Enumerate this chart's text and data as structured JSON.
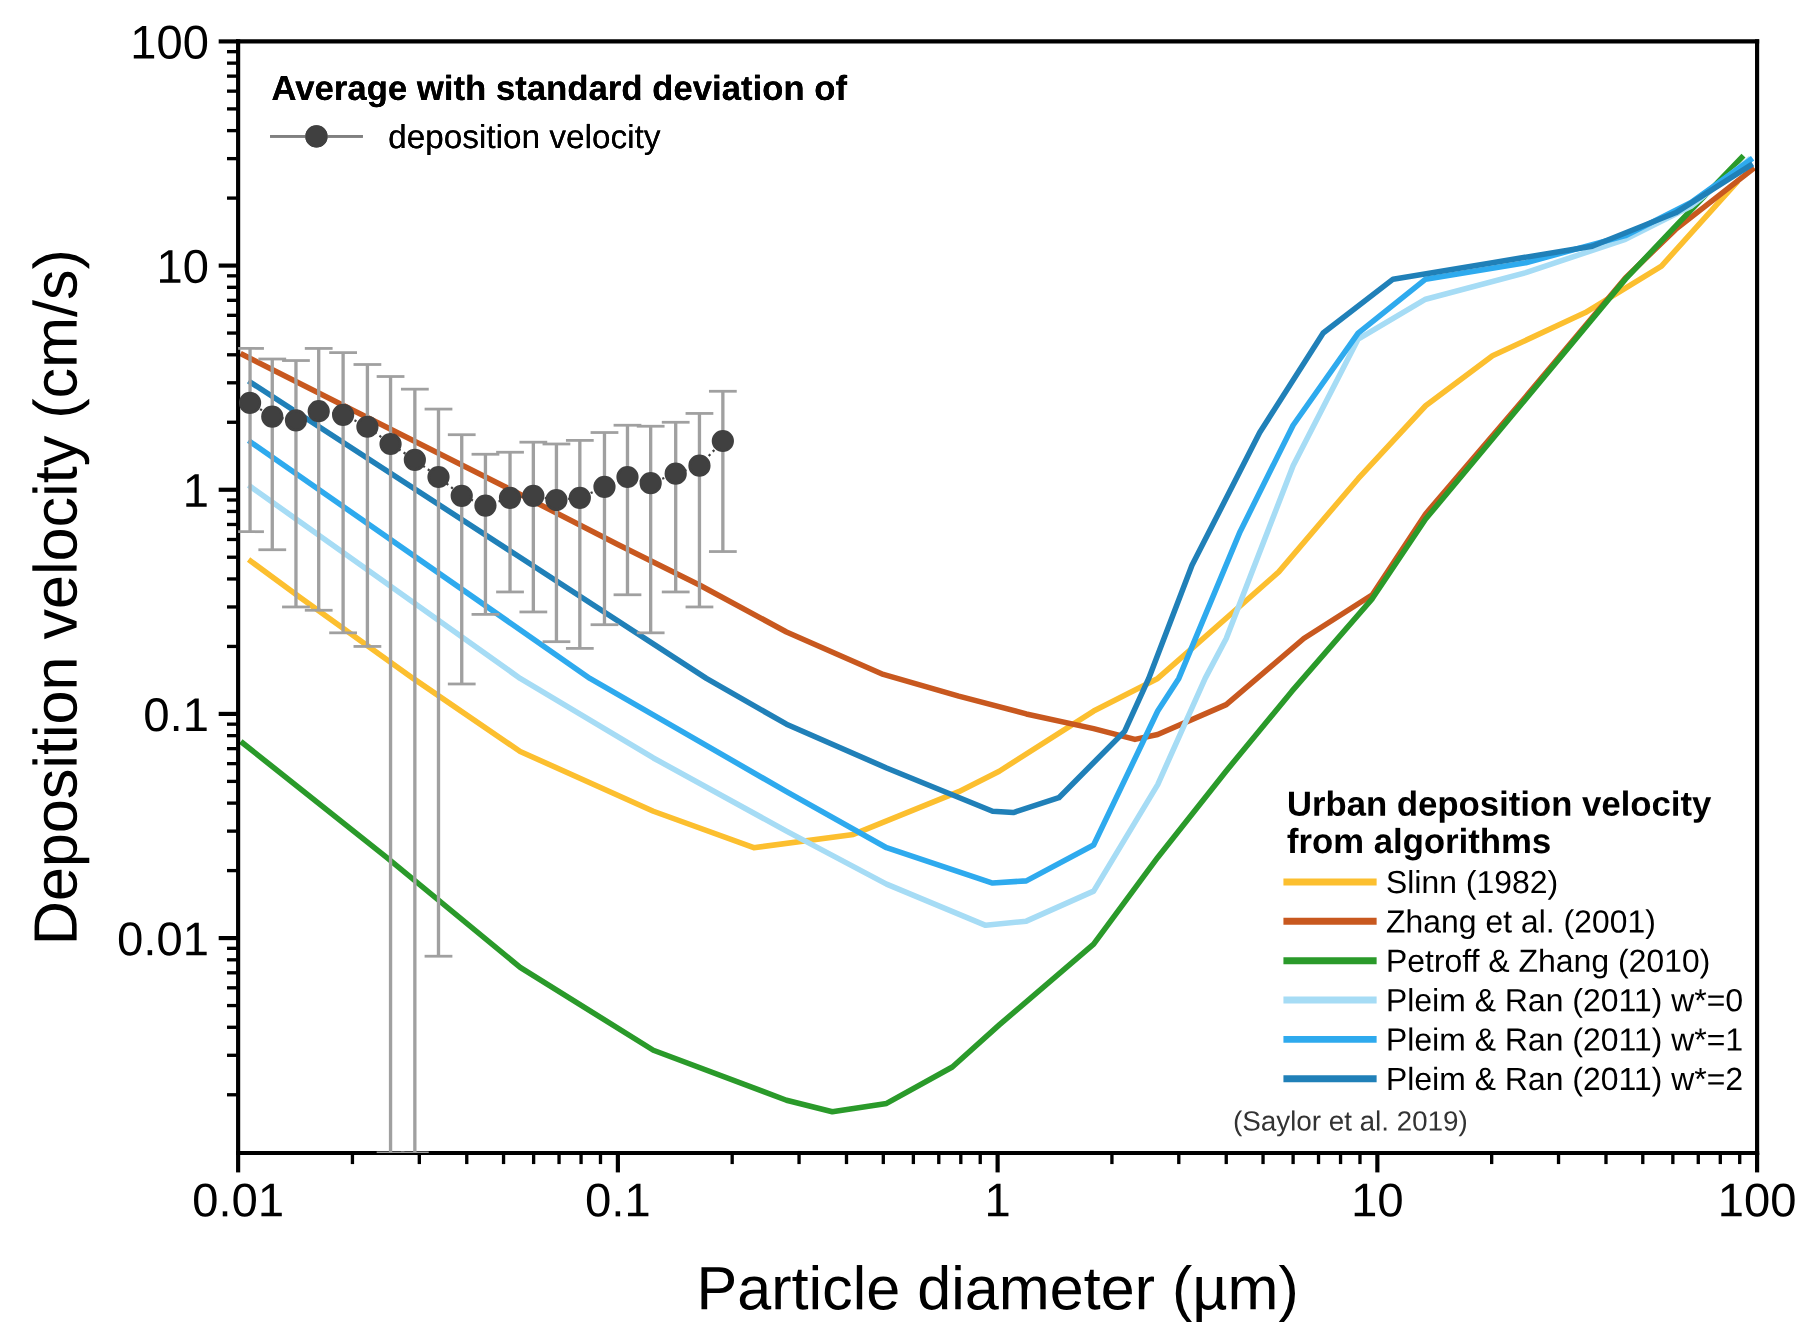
{
  "chart_data": {
    "type": "line",
    "xlabel": "Particle diameter (µm)",
    "ylabel": "Deposition velocity (cm/s)",
    "legend_title": "Urban deposition velocity\nfrom algorithms",
    "annotations": [
      "Average with standard deviation of",
      "(Saylor et al. 2019)"
    ],
    "log": "xy",
    "legend": "bottom right",
    "grid": false,
    "xlim": [
      0.01,
      100
    ],
    "xticks": [
      0.01,
      0.1,
      1,
      10,
      100
    ],
    "ylim": [
      0.0011,
      100
    ],
    "yticks": [
      0.01,
      0.1,
      1,
      10,
      100
    ],
    "series": [
      {
        "name": "deposition velocity",
        "type": "line",
        "color": "#404040",
        "marker": "circle",
        "line_style": "dotted",
        "x": [
          0.01075,
          0.0123,
          0.0142,
          0.0163,
          0.0189,
          0.0219,
          0.0252,
          0.0292,
          0.0337,
          0.0388,
          0.0448,
          0.052,
          0.0599,
          0.0689,
          0.0794,
          0.0922,
          0.106,
          0.122,
          0.142,
          0.164,
          0.189
        ],
        "values": [
          2.44,
          2.12,
          2.04,
          2.24,
          2.16,
          1.91,
          1.6,
          1.36,
          1.14,
          0.94,
          0.85,
          0.92,
          0.94,
          0.9,
          0.92,
          1.03,
          1.14,
          1.07,
          1.18,
          1.28,
          1.65
        ],
        "errors": [
          [
            0.65,
            4.27
          ],
          [
            0.54,
            3.83
          ],
          [
            0.3,
            3.77
          ],
          [
            0.29,
            4.27
          ],
          [
            0.23,
            4.09
          ],
          [
            0.2,
            3.62
          ],
          [
            0.0011,
            3.2
          ],
          [
            0.0011,
            2.81
          ],
          [
            0.0083,
            2.29
          ],
          [
            0.136,
            1.76
          ],
          [
            0.278,
            1.44
          ],
          [
            0.35,
            1.47
          ],
          [
            0.285,
            1.63
          ],
          [
            0.21,
            1.6
          ],
          [
            0.196,
            1.66
          ],
          [
            0.25,
            1.8
          ],
          [
            0.34,
            1.94
          ],
          [
            0.23,
            1.92
          ],
          [
            0.35,
            2.0
          ],
          [
            0.3,
            2.19
          ],
          [
            0.53,
            2.75
          ]
        ]
      },
      {
        "name": "Slinn (1982)",
        "color": "#fcbf2f",
        "x": [
          0.0108,
          0.0146,
          0.0289,
          0.0553,
          0.124,
          0.228,
          0.417,
          0.79,
          1.01,
          1.79,
          2.64,
          3.25,
          5.5,
          8.9,
          13.4,
          20.1,
          35.3,
          56,
          88
        ],
        "values": [
          0.48,
          0.33,
          0.144,
          0.068,
          0.0368,
          0.0253,
          0.029,
          0.045,
          0.0555,
          0.103,
          0.144,
          0.196,
          0.43,
          1.12,
          2.37,
          3.96,
          6.17,
          9.95,
          23.3
        ]
      },
      {
        "name": "Zhang et al. (2001)",
        "color": "#c8581f",
        "x": [
          0.0103,
          0.02,
          0.05,
          0.1,
          0.164,
          0.278,
          0.5,
          0.79,
          1.19,
          1.79,
          2.3,
          2.64,
          4.0,
          6.4,
          9.7,
          13.4,
          24.6,
          45,
          61,
          97
        ],
        "values": [
          4.0,
          2.27,
          1.04,
          0.57,
          0.376,
          0.232,
          0.15,
          0.12,
          0.1,
          0.086,
          0.077,
          0.081,
          0.11,
          0.217,
          0.34,
          0.78,
          2.6,
          8.8,
          14.5,
          26.8
        ]
      },
      {
        "name": "Petroff & Zhang (2010)",
        "color": "#2a9a2a",
        "x": [
          0.0103,
          0.0246,
          0.0553,
          0.124,
          0.278,
          0.367,
          0.51,
          0.76,
          1.01,
          1.79,
          2.64,
          3.99,
          5.95,
          9.7,
          13.4,
          24.6,
          45,
          61,
          91
        ],
        "values": [
          0.074,
          0.0229,
          0.0074,
          0.00316,
          0.00189,
          0.00168,
          0.00183,
          0.00266,
          0.0041,
          0.0094,
          0.0229,
          0.0554,
          0.126,
          0.327,
          0.74,
          2.54,
          8.7,
          15,
          30.3
        ]
      },
      {
        "name": "Pleim & Ran (2011) w*=0",
        "color": "#a6dcf5",
        "x": [
          0.0108,
          0.0553,
          0.124,
          0.278,
          0.51,
          0.93,
          1.19,
          1.79,
          2.64,
          3.52,
          4.0,
          6.0,
          8.9,
          13.4,
          24.6,
          45,
          67,
          95
        ],
        "values": [
          1.03,
          0.144,
          0.0636,
          0.03,
          0.0174,
          0.0114,
          0.0119,
          0.0162,
          0.0484,
          0.144,
          0.217,
          1.28,
          4.7,
          7.08,
          9.3,
          13.1,
          18.4,
          29.6
        ]
      },
      {
        "name": "Pleim & Ran (2011) w*=1",
        "color": "#2eaaee",
        "x": [
          0.0108,
          0.0844,
          0.278,
          0.51,
          0.97,
          1.19,
          1.79,
          2.64,
          3.0,
          4.35,
          6.0,
          8.9,
          13.4,
          24.6,
          45,
          67,
          96
        ],
        "values": [
          1.63,
          0.144,
          0.045,
          0.0253,
          0.0176,
          0.018,
          0.026,
          0.103,
          0.144,
          0.65,
          1.94,
          5.0,
          8.7,
          10.3,
          13.6,
          19.1,
          29.6
        ]
      },
      {
        "name": "Pleim & Ran (2011) w*=2",
        "color": "#2080b8",
        "x": [
          0.0108,
          0.171,
          0.278,
          0.51,
          0.97,
          1.1,
          1.45,
          2.16,
          2.5,
          3.25,
          4.9,
          7.2,
          11.0,
          20.1,
          36.8,
          61,
          96
        ],
        "values": [
          3.01,
          0.144,
          0.09,
          0.0574,
          0.0368,
          0.0363,
          0.0423,
          0.0836,
          0.144,
          0.46,
          1.8,
          5.0,
          8.7,
          10.3,
          12.2,
          17.2,
          28
        ]
      }
    ]
  }
}
